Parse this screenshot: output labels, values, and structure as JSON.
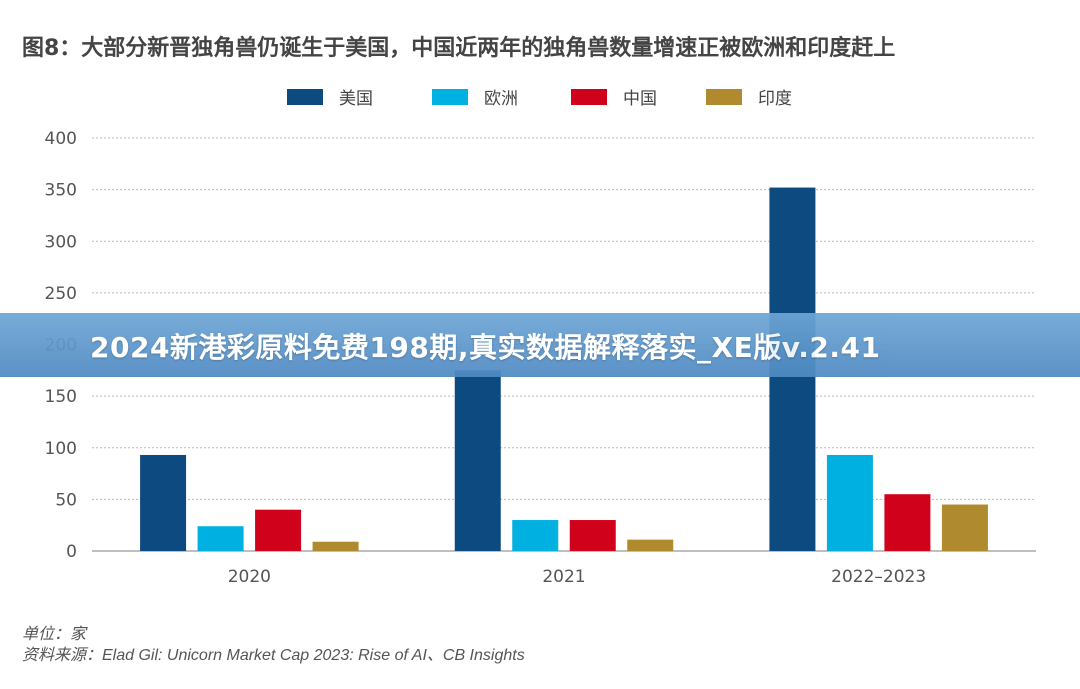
{
  "chart_data": {
    "type": "bar",
    "title": "图8：大部分新晋独角兽仍诞生于美国，中国近两年的独角兽数量增速正被欧洲和印度赶上",
    "categories": [
      "2020",
      "2021",
      "2022–2023"
    ],
    "series": [
      {
        "name": "美国",
        "color": "#0d4a80",
        "values": [
          93,
          175,
          352
        ]
      },
      {
        "name": "欧洲",
        "color": "#00b0e0",
        "values": [
          24,
          30,
          93
        ]
      },
      {
        "name": "中国",
        "color": "#d0021b",
        "values": [
          40,
          30,
          55
        ]
      },
      {
        "name": "印度",
        "color": "#b08a2e",
        "values": [
          9,
          11,
          45
        ]
      }
    ],
    "ylim": [
      0,
      400
    ],
    "yticks": [
      "0",
      "50",
      "100",
      "150",
      "200",
      "250",
      "300",
      "350",
      "400"
    ],
    "xlabel": "",
    "ylabel": "",
    "legend_position": "top-center",
    "grid": "dashed horizontal"
  },
  "banner": {
    "text": "2024新港彩原料免费198期,真实数据解释落实_XE版v.2.41"
  },
  "notes": {
    "unit": "单位：家",
    "source": "资料来源：Elad Gil: Unicorn Market Cap 2023: Rise of AI、CB Insights"
  }
}
